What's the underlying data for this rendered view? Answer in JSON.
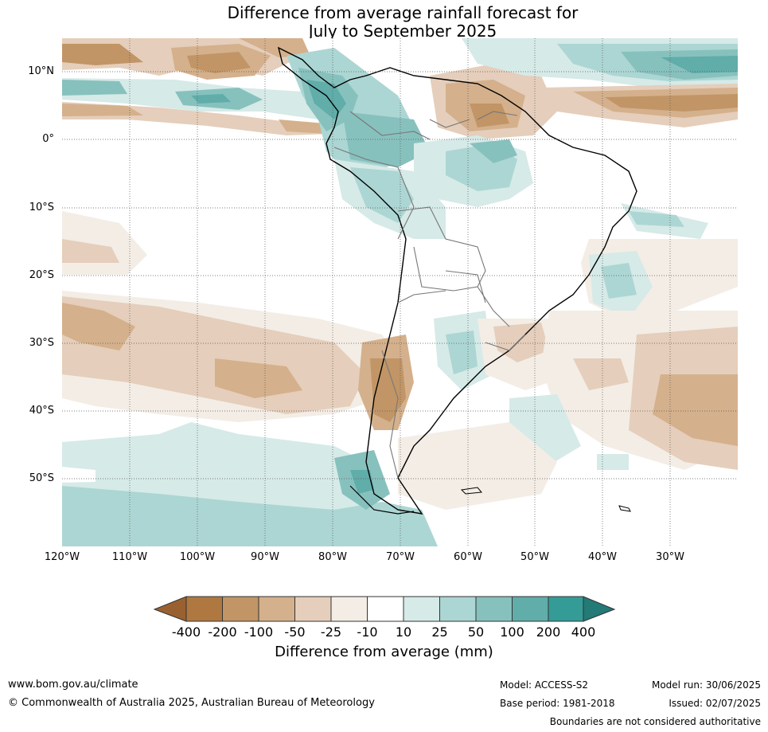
{
  "header": {
    "title_line1": "Difference from average rainfall forecast for",
    "title_line2": "July to September 2025"
  },
  "map": {
    "region": "South America",
    "lat_labels": [
      "10°N",
      "0°",
      "10°S",
      "20°S",
      "30°S",
      "40°S",
      "50°S"
    ],
    "lon_labels": [
      "120°W",
      "110°W",
      "100°W",
      "90°W",
      "80°W",
      "70°W",
      "60°W",
      "50°W",
      "40°W",
      "30°W"
    ],
    "gridlines": "dotted",
    "coastlines": "black",
    "borders": "grey"
  },
  "colorbar": {
    "labels": [
      "-400",
      "-200",
      "-100",
      "-50",
      "-25",
      "-10",
      "10",
      "25",
      "50",
      "100",
      "200",
      "400"
    ],
    "low_extend_color": "#9a6130",
    "high_extend_color": "#237a77",
    "colors": [
      "#b07841",
      "#c19566",
      "#d4b08c",
      "#e5cebb",
      "#f3ede6",
      "#ffffff",
      "#d6eae8",
      "#acd6d3",
      "#87c1be",
      "#60adaa",
      "#349b97"
    ],
    "title": "Difference from average (mm)"
  },
  "footer": {
    "url": "www.bom.gov.au/climate",
    "copyright": "© Commonwealth of Australia 2025, Australian Bureau of Meteorology",
    "model": "Model: ACCESS-S2",
    "base_period": "Base period: 1981-2018",
    "model_run": "Model run: 30/06/2025",
    "issued": "Issued: 02/07/2025",
    "disclaimer": "Boundaries are not considered authoritative"
  }
}
